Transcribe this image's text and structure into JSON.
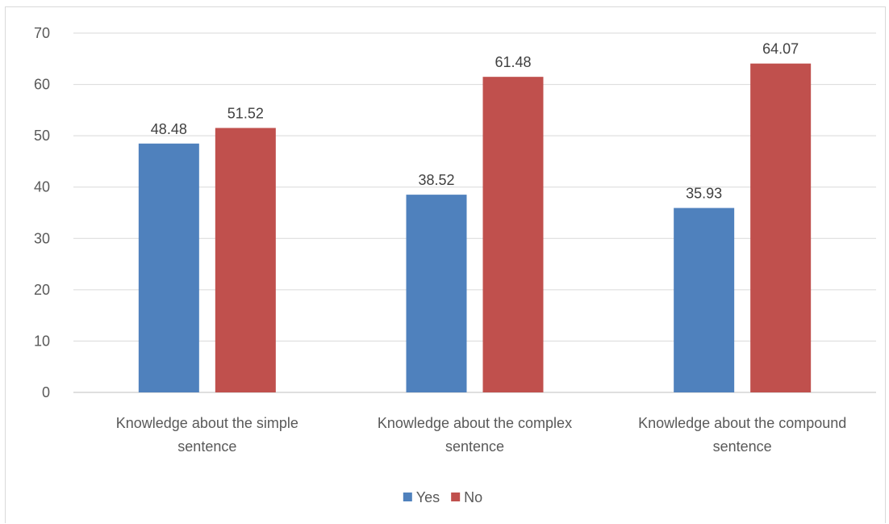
{
  "chart_data": {
    "type": "bar",
    "title": "",
    "xlabel": "",
    "ylabel": "",
    "categories": [
      [
        "Knowledge about the simple",
        "sentence"
      ],
      [
        "Knowledge about the complex",
        "sentence"
      ],
      [
        "Knowledge about the compound",
        "sentence"
      ]
    ],
    "series": [
      {
        "name": "Yes",
        "color": "#4f81bd",
        "values": [
          48.48,
          38.52,
          35.93
        ]
      },
      {
        "name": "No",
        "color": "#c0504d",
        "values": [
          51.52,
          61.48,
          64.07
        ]
      }
    ],
    "ylim": [
      0,
      70
    ],
    "yticks": [
      0,
      10,
      20,
      30,
      40,
      50,
      60,
      70
    ],
    "grid": true,
    "legend_position": "bottom",
    "data_labels": true
  }
}
